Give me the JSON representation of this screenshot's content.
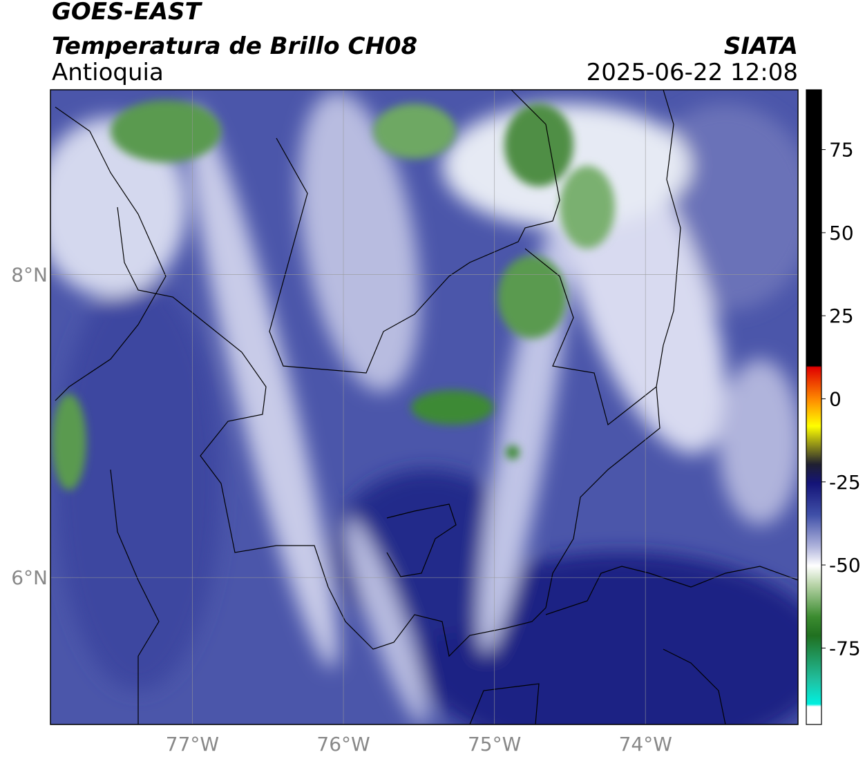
{
  "header": {
    "title": "GOES-EAST",
    "subtitle": "Temperatura de Brillo CH08",
    "region": "Antioquia",
    "source": "SIATA",
    "datetime": "2025-06-22 12:08"
  },
  "map": {
    "xlim": [
      -77.94,
      -72.99
    ],
    "ylim": [
      5.03,
      9.22
    ],
    "xticks": [
      {
        "value": -77,
        "label": "77°W"
      },
      {
        "value": -76,
        "label": "76°W"
      },
      {
        "value": -75,
        "label": "75°W"
      },
      {
        "value": -74,
        "label": "74°W"
      }
    ],
    "yticks": [
      {
        "value": 8,
        "label": "8°N"
      },
      {
        "value": 6,
        "label": "6°N"
      }
    ],
    "grid": true
  },
  "colorbar": {
    "lim": [
      -98,
      93
    ],
    "ticks": [
      75,
      50,
      25,
      0,
      -25,
      -50,
      -75
    ]
  }
}
